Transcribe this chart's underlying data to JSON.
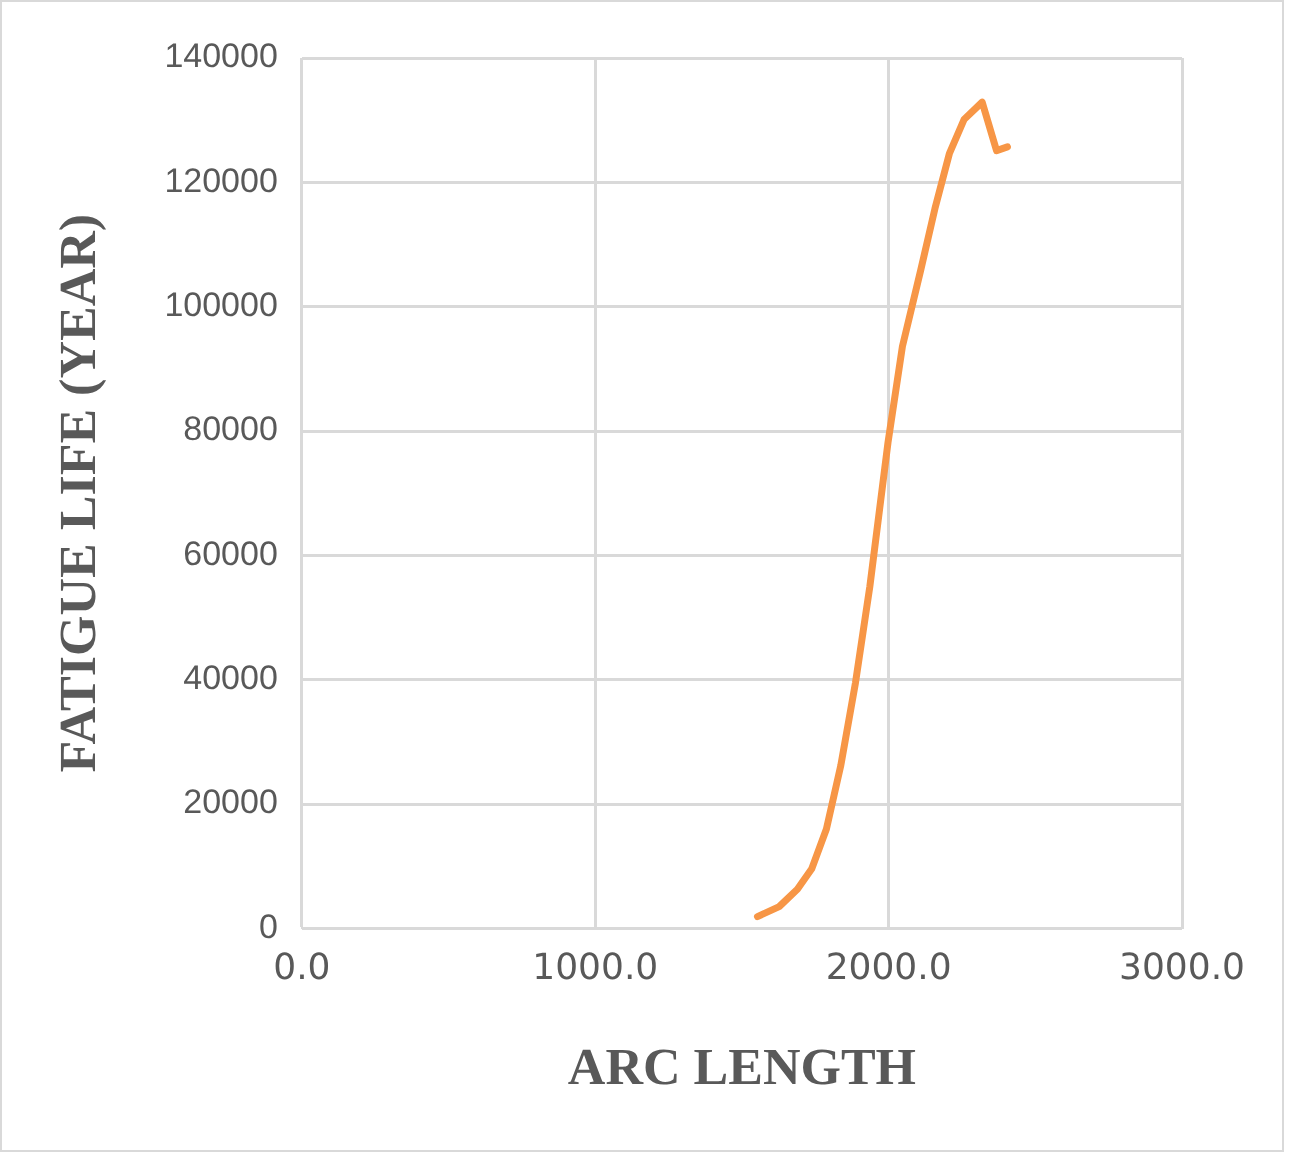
{
  "chart_data": {
    "type": "line",
    "xlabel": "ARC LENGTH",
    "ylabel": "FATIGUE LIFE (YEAR)",
    "x": [
      1553,
      1627,
      1689,
      1738,
      1788,
      1837,
      1887,
      1936,
      1998,
      2047,
      2109,
      2158,
      2207,
      2257,
      2319,
      2368,
      2405
    ],
    "series": [
      {
        "color": "#f79646",
        "values": [
          1900,
          3500,
          6300,
          9600,
          16000,
          26200,
          39500,
          55000,
          78200,
          93600,
          105800,
          115800,
          124600,
          130100,
          132900,
          125100,
          125700
        ]
      }
    ],
    "xlim": [
      0,
      3000
    ],
    "xticks": [
      {
        "value": 0,
        "label": "0.0"
      },
      {
        "value": 1000,
        "label": "1000.0"
      },
      {
        "value": 2000,
        "label": "2000.0"
      },
      {
        "value": 3000,
        "label": "3000.0"
      }
    ],
    "ylim": [
      0,
      140000
    ],
    "yticks": [
      0,
      20000,
      40000,
      60000,
      80000,
      100000,
      120000,
      140000
    ],
    "grid": true,
    "legend": false,
    "marker": "none",
    "line_style": "solid"
  }
}
